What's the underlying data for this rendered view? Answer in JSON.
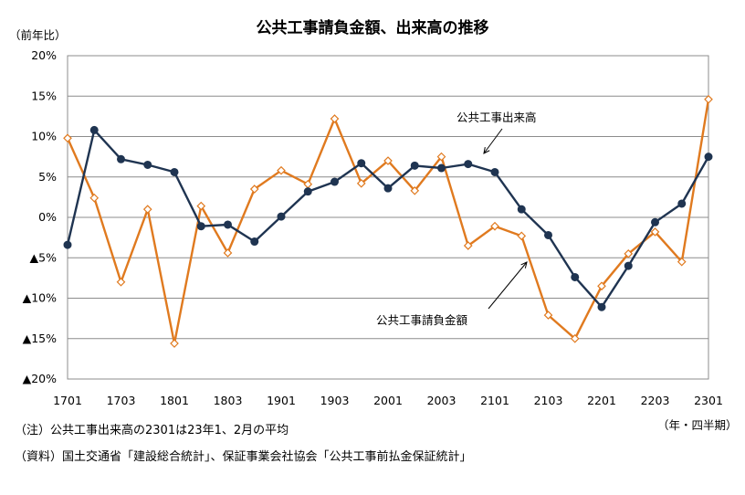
{
  "chart_data": {
    "type": "line",
    "title": "公共工事請負金額、出来高の推移",
    "ylabel": "（前年比）",
    "xlabel": "（年・四半期）",
    "ylim": [
      -20,
      20
    ],
    "yticks": [
      20,
      15,
      10,
      5,
      0,
      -5,
      -10,
      -15,
      -20
    ],
    "ytick_labels": [
      "20%",
      "15%",
      "10%",
      "5%",
      "0%",
      "▲5%",
      "▲10%",
      "▲15%",
      "▲20%"
    ],
    "x": [
      "1701",
      "1702",
      "1703",
      "1704",
      "1801",
      "1802",
      "1803",
      "1804",
      "1901",
      "1902",
      "1903",
      "1904",
      "2001",
      "2002",
      "2003",
      "2004",
      "2101",
      "2102",
      "2103",
      "2104",
      "2201",
      "2202",
      "2203",
      "2204",
      "2301"
    ],
    "xtick_labels": [
      "1701",
      "1703",
      "1801",
      "1803",
      "1901",
      "1903",
      "2001",
      "2003",
      "2101",
      "2103",
      "2201",
      "2203",
      "2301"
    ],
    "grid": true,
    "series": [
      {
        "name": "公共工事出来高",
        "color": "#1f3451",
        "marker": "circle",
        "values": [
          -3.4,
          10.8,
          7.2,
          6.5,
          5.6,
          -1.1,
          -0.9,
          -3.0,
          0.1,
          3.2,
          4.4,
          6.7,
          3.6,
          6.4,
          6.1,
          6.6,
          5.6,
          1.0,
          -2.2,
          -7.4,
          -11.1,
          -6.0,
          -0.6,
          1.7,
          7.5
        ]
      },
      {
        "name": "公共工事請負金額",
        "color": "#e07a1f",
        "marker": "diamond",
        "values": [
          9.8,
          2.4,
          -8.0,
          1.0,
          -15.6,
          1.4,
          -4.4,
          3.5,
          5.8,
          4.1,
          12.2,
          4.2,
          7.0,
          3.3,
          7.5,
          -3.5,
          -1.1,
          -2.3,
          -12.1,
          -15.0,
          -8.5,
          -4.5,
          -1.8,
          -5.5,
          14.6
        ]
      }
    ],
    "annotations": [
      "公共工事出来高",
      "公共工事請負金額"
    ]
  },
  "notes": [
    "（注）公共工事出来高の2301は23年1、2月の平均",
    "（資料）国土交通省「建設総合統計」、保証事業会社協会「公共工事前払金保証統計」"
  ]
}
